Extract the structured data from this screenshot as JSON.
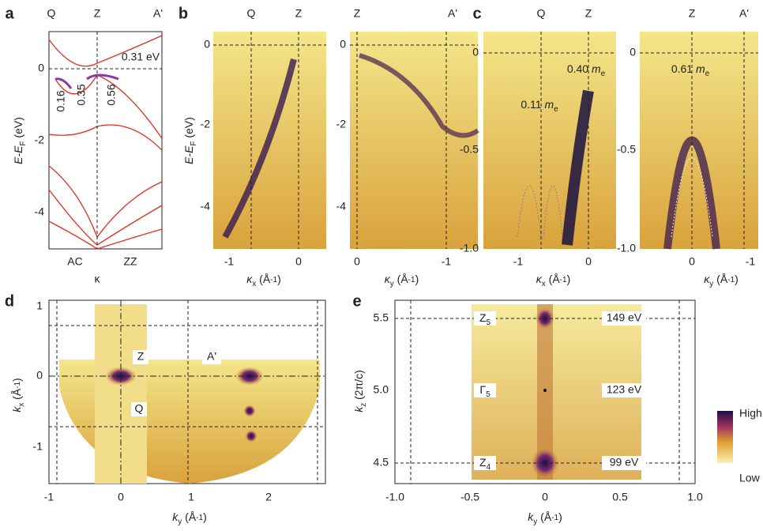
{
  "panels": {
    "a": {
      "letter": "a",
      "top_labels": [
        "Q",
        "Z",
        "A'"
      ],
      "yticks": [
        "0",
        "-2",
        "-4"
      ],
      "ylabel": [
        "E-E",
        "F",
        " (eV)"
      ],
      "bottom_labels": [
        "AC",
        "ZZ"
      ],
      "xlabel": "κ",
      "annotations": [
        "0.31 eV",
        "0.16",
        "0.35",
        "0.56"
      ]
    },
    "b": {
      "letter": "b",
      "ylabel": [
        "E-E",
        "F",
        " (eV)"
      ],
      "left": {
        "top_labels": [
          "Q",
          "Z"
        ],
        "yticks": [
          "0",
          "-2",
          "-4"
        ],
        "xticks": [
          "-1",
          "0"
        ],
        "xlabel": [
          "κ",
          "x",
          " (Å",
          "-1",
          ")"
        ]
      },
      "right": {
        "top_labels": [
          "Z",
          "A'"
        ],
        "yticks": [
          "0",
          "-2",
          "-4"
        ],
        "xticks": [
          "0",
          "-1"
        ],
        "xlabel": [
          "κ",
          "y",
          " (Å",
          "-1",
          ")"
        ]
      }
    },
    "c": {
      "letter": "c",
      "left": {
        "top_labels": [
          "Q",
          "Z"
        ],
        "yticks": [
          "0",
          "-0.5",
          "-1.0"
        ],
        "xticks": [
          "-1",
          "0"
        ],
        "xlabel": [
          "κ",
          "x",
          " (Å",
          "-1",
          ")"
        ],
        "annotations": [
          [
            "0.40 ",
            "m",
            "e"
          ],
          [
            "0.11 ",
            "m",
            "e"
          ]
        ]
      },
      "right": {
        "top_labels": [
          "Z",
          "A'"
        ],
        "yticks": [
          "0",
          "-0.5",
          "-1.0"
        ],
        "xticks": [
          "0",
          "-1"
        ],
        "xlabel": [
          "κ",
          "y",
          " (Å",
          "-1",
          ")"
        ],
        "annotations": [
          [
            "0.61 ",
            "m",
            "e"
          ]
        ]
      }
    },
    "d": {
      "letter": "d",
      "yticks": [
        "1",
        "0",
        "-1"
      ],
      "xticks": [
        "-1",
        "0",
        "1",
        "2"
      ],
      "ylabel": [
        "k",
        "x",
        " (Å",
        "-1",
        ")"
      ],
      "xlabel": [
        "k",
        "y",
        " (Å",
        "-1",
        ")"
      ],
      "labels": [
        "Z",
        "A'",
        "Q"
      ]
    },
    "e": {
      "letter": "e",
      "yticks": [
        "5.5",
        "5.0",
        "4.5"
      ],
      "xticks": [
        "-1.0",
        "-0.5",
        "0",
        "0.5",
        "1.0"
      ],
      "ylabel": [
        "k",
        "z",
        " (2π/c)"
      ],
      "xlabel": [
        "k",
        "y",
        " (Å",
        "-1",
        ")"
      ],
      "labels": [
        [
          "Z",
          "5"
        ],
        [
          "Γ",
          "5"
        ],
        [
          "Z",
          "4"
        ]
      ],
      "energies": [
        "149 eV",
        "123 eV",
        "99 eV"
      ],
      "colorbar": [
        "High",
        "Low"
      ]
    }
  }
}
